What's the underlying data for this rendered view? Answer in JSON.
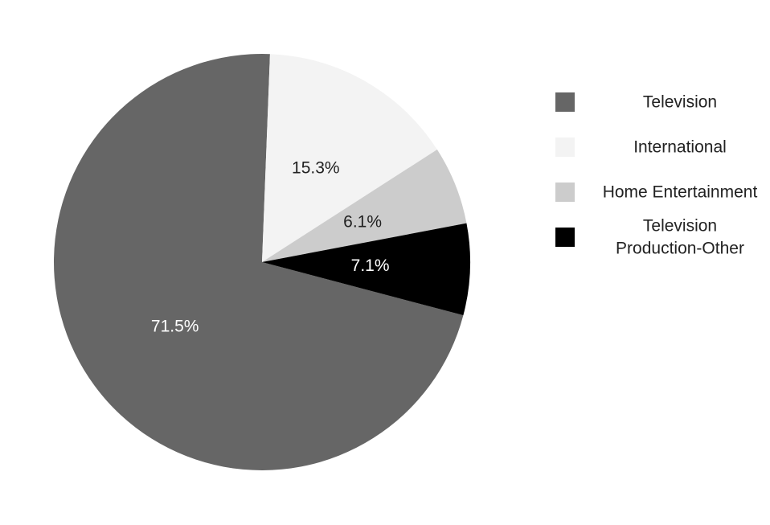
{
  "chart_data": {
    "type": "pie",
    "title": "",
    "start_angle_deg": -14.8,
    "direction": "counterclockwise",
    "categories": [
      "Television",
      "International",
      "Home Entertainment",
      "Television Production-Other"
    ],
    "values": [
      71.5,
      15.3,
      6.1,
      7.1
    ],
    "labels": [
      "71.5%",
      "15.3%",
      "6.1%",
      "7.1%"
    ],
    "colors": [
      "#666666",
      "#f3f3f3",
      "#cccccc",
      "#000000"
    ],
    "label_colors": [
      "#ffffff",
      "#222222",
      "#222222",
      "#ffffff"
    ],
    "legend": {
      "placement": "right",
      "entries": [
        {
          "lines": [
            "Television"
          ]
        },
        {
          "lines": [
            "International"
          ]
        },
        {
          "lines": [
            "Home Entertainment"
          ]
        },
        {
          "lines": [
            "Television",
            "Production-Other"
          ]
        }
      ]
    }
  }
}
